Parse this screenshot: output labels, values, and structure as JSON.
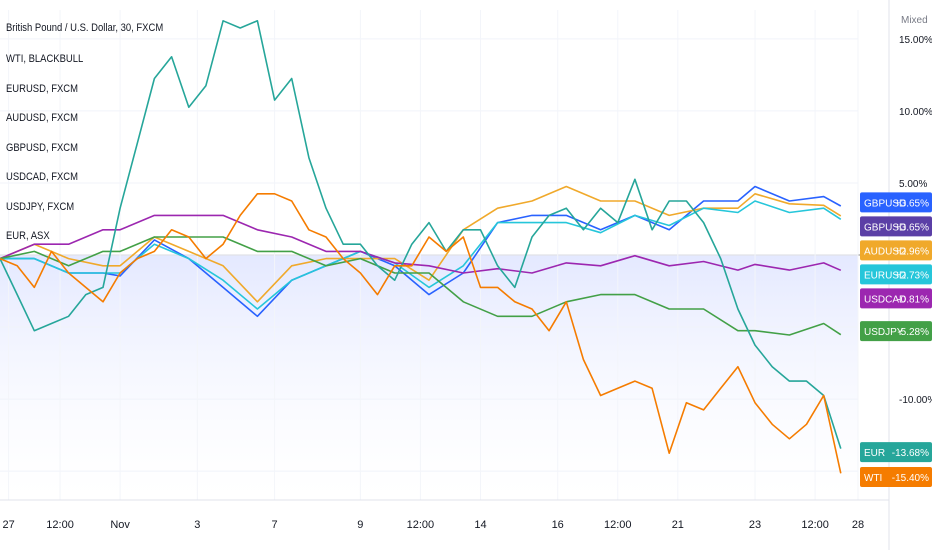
{
  "chart_data": {
    "type": "line",
    "title": "British Pound / U.S. Dollar, 30, FXCM",
    "scale_label": "Mixed",
    "legend": [
      "WTI, BLACKBULL",
      "EURUSD, FXCM",
      "AUDUSD, FXCM",
      "GBPUSD, FXCM",
      "USDCAD, FXCM",
      "USDJPY, FXCM",
      "EUR, ASX"
    ],
    "y_axis": {
      "unit": "percent",
      "ticks": [
        "15.00%",
        "10.00%",
        "5.00%",
        "-10.00%"
      ],
      "ylim": [
        -17,
        17
      ]
    },
    "x_axis": {
      "ticks": [
        "27",
        "12:00",
        "Nov",
        "3",
        "7",
        "9",
        "12:00",
        "14",
        "16",
        "12:00",
        "21",
        "23",
        "12:00",
        "28"
      ],
      "xlim": [
        0,
        100
      ]
    },
    "grid": true,
    "baseline": 0,
    "series": [
      {
        "name": "GBPUSD",
        "color": "#2962ff",
        "last_label": "+3.65%",
        "x": [
          0,
          4,
          8,
          12,
          14,
          18,
          22,
          26,
          30,
          34,
          38,
          42,
          46,
          50,
          54,
          58,
          62,
          66,
          70,
          74,
          78,
          82,
          86,
          88,
          92,
          96,
          98
        ],
        "y": [
          0,
          -0.5,
          -1,
          -1.5,
          -1.2,
          0.8,
          0,
          -2.5,
          -4,
          -2,
          -0.5,
          0,
          -0.5,
          -3,
          -1,
          2,
          3,
          2.5,
          2,
          2.5,
          2,
          3.5,
          4,
          4.5,
          4,
          3.8,
          3.65
        ]
      },
      {
        "name": "GBPUSD",
        "color": "#5b3fa6",
        "last_label": "+3.65%",
        "x": [],
        "y": []
      },
      {
        "name": "AUDUSD",
        "color": "#f0a92b",
        "last_label": "+2.96%",
        "x": [
          0,
          4,
          8,
          12,
          14,
          18,
          22,
          26,
          30,
          34,
          38,
          42,
          46,
          50,
          54,
          58,
          62,
          66,
          70,
          74,
          78,
          82,
          86,
          88,
          92,
          96,
          98
        ],
        "y": [
          0,
          0.5,
          0,
          -1,
          -0.5,
          1,
          0.5,
          -1,
          -3,
          -1,
          0,
          -0.5,
          0,
          -2,
          2,
          3,
          4,
          4.5,
          4,
          3.5,
          3,
          3,
          3.5,
          4,
          3.8,
          3.2,
          2.96
        ]
      },
      {
        "name": "EURUSD",
        "color": "#26c6da",
        "last_label": "+2.73%",
        "x": [
          0,
          4,
          8,
          12,
          14,
          18,
          22,
          26,
          30,
          34,
          38,
          42,
          46,
          50,
          54,
          58,
          62,
          66,
          70,
          74,
          78,
          82,
          86,
          88,
          92,
          96,
          98
        ],
        "y": [
          0,
          -0.5,
          -1,
          -1.5,
          -1,
          0.5,
          0,
          -2,
          -3.5,
          -2,
          -0.5,
          0,
          -0.3,
          -2.5,
          -0.5,
          2,
          2.5,
          2,
          1.8,
          2.5,
          2.3,
          3,
          3.2,
          3.5,
          3.2,
          3,
          2.73
        ]
      },
      {
        "name": "USDCAD",
        "color": "#9c27b0",
        "last_label": "-0.81%",
        "x": [
          0,
          4,
          8,
          12,
          14,
          18,
          22,
          26,
          30,
          34,
          38,
          42,
          46,
          50,
          54,
          58,
          62,
          66,
          70,
          74,
          78,
          82,
          86,
          88,
          92,
          96,
          98
        ],
        "y": [
          0,
          0.5,
          1,
          1.5,
          2,
          2.5,
          3,
          2.5,
          2,
          1,
          0.5,
          0,
          -0.3,
          -1,
          -1,
          -1.2,
          -1,
          -0.8,
          -0.5,
          -0.3,
          -0.5,
          -0.7,
          -0.8,
          -0.9,
          -0.8,
          -0.8,
          -0.81
        ]
      },
      {
        "name": "USDJPY",
        "color": "#43a047",
        "last_label": "-5.28%",
        "x": [
          0,
          4,
          8,
          12,
          14,
          18,
          22,
          26,
          30,
          34,
          38,
          42,
          46,
          50,
          54,
          58,
          62,
          66,
          70,
          74,
          78,
          82,
          86,
          88,
          92,
          96,
          98
        ],
        "y": [
          0,
          0,
          -0.5,
          0,
          0.5,
          1,
          1.5,
          1,
          0.5,
          0,
          -0.5,
          -0.5,
          -1,
          -1.5,
          -3,
          -4.5,
          -4,
          -3.5,
          -2.5,
          -3,
          -3.5,
          -4,
          -5,
          -5.5,
          -5.3,
          -5,
          -5.28
        ]
      },
      {
        "name": "EUR",
        "color": "#26a69a",
        "last_label": "-13.68%",
        "x": [
          0,
          2,
          4,
          6,
          8,
          10,
          12,
          14,
          16,
          18,
          20,
          22,
          24,
          26,
          28,
          30,
          32,
          34,
          36,
          38,
          40,
          42,
          44,
          46,
          48,
          50,
          52,
          54,
          56,
          58,
          60,
          62,
          64,
          66,
          68,
          70,
          72,
          74,
          76,
          78,
          80,
          82,
          84,
          86,
          88,
          90,
          92,
          94,
          96,
          98
        ],
        "y": [
          0,
          -3,
          -5,
          -5,
          -4,
          -3,
          -2,
          3,
          8,
          12,
          14,
          10,
          12,
          16,
          16,
          16,
          11,
          12,
          7,
          3,
          1,
          0.5,
          -0.5,
          -2,
          1,
          2,
          0.5,
          1.5,
          2,
          -1,
          -2,
          1,
          3,
          3,
          2,
          3,
          2.5,
          5,
          2,
          3.5,
          4,
          2,
          0,
          -4,
          -6,
          -8,
          -8.5,
          -9,
          -9.5,
          -13.68
        ]
      },
      {
        "name": "WTI",
        "color": "#f57c00",
        "last_label": "-15.40%",
        "x": [
          0,
          2,
          4,
          6,
          8,
          10,
          12,
          14,
          16,
          18,
          20,
          22,
          24,
          26,
          28,
          30,
          32,
          34,
          36,
          38,
          40,
          42,
          44,
          46,
          48,
          50,
          52,
          54,
          56,
          58,
          60,
          62,
          64,
          66,
          68,
          70,
          72,
          74,
          76,
          78,
          80,
          82,
          84,
          86,
          88,
          90,
          92,
          94,
          96,
          98
        ],
        "y": [
          0,
          -1,
          -2,
          0,
          -1,
          -2.5,
          -3,
          -1.5,
          0,
          0,
          2,
          1,
          0,
          0.5,
          3,
          4,
          4.5,
          3.5,
          2,
          1,
          0,
          -1.5,
          -2.5,
          -1,
          -0.5,
          1,
          0.5,
          1,
          -2,
          -2.5,
          -3,
          -4,
          -5,
          -3.5,
          -7,
          -10,
          -9,
          -9,
          -9,
          -14,
          -10,
          -11,
          -9,
          -8,
          -10,
          -12,
          -12.5,
          -12,
          -9.5,
          -15.4
        ]
      }
    ]
  }
}
